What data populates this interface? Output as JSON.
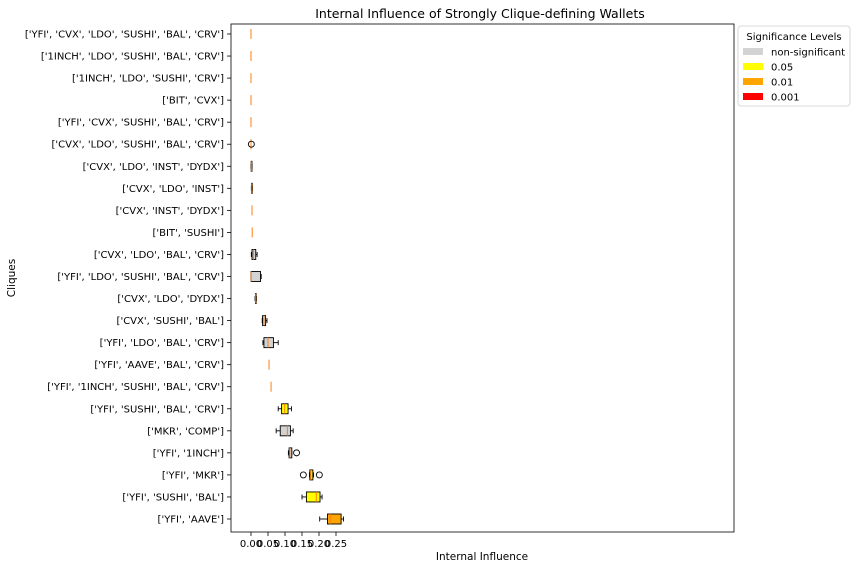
{
  "chart_data": {
    "type": "boxplot",
    "orientation": "horizontal",
    "title": "Internal Influence of Strongly Clique-defining Wallets",
    "xlabel": "Internal Influence",
    "ylabel": "Cliques",
    "xlim": [
      -0.015,
      0.285
    ],
    "xticks": [
      0.0,
      0.05,
      0.1,
      0.15,
      0.2,
      0.25
    ],
    "xtick_labels": [
      "0.00",
      "0.05",
      "0.10",
      "0.15",
      "0.20",
      "0.25"
    ],
    "legend": {
      "title": "Significance Levels",
      "placement": "outside-top-right",
      "items": [
        {
          "label": "non-significant",
          "color": "#d3d3d3"
        },
        {
          "label": "0.05",
          "color": "#ffff00"
        },
        {
          "label": "0.01",
          "color": "#ffa500"
        },
        {
          "label": "0.001",
          "color": "#ff0000"
        }
      ]
    },
    "median_color": "#ff7f0e",
    "boxes": [
      {
        "label": "['YFI', 'CVX', 'LDO', 'SUSHI', 'BAL', 'CRV']",
        "level": "non-significant",
        "whislo": 0.0,
        "q1": 0.0,
        "med": 0.0,
        "q3": 0.0,
        "whishi": 0.0,
        "fliers": []
      },
      {
        "label": "['1INCH', 'LDO', 'SUSHI', 'BAL', 'CRV']",
        "level": "non-significant",
        "whislo": 0.0,
        "q1": 0.0,
        "med": 0.0,
        "q3": 0.0,
        "whishi": 0.0,
        "fliers": []
      },
      {
        "label": "['1INCH', 'LDO', 'SUSHI', 'CRV']",
        "level": "non-significant",
        "whislo": 0.0,
        "q1": 0.0,
        "med": 0.0,
        "q3": 0.0,
        "whishi": 0.0,
        "fliers": []
      },
      {
        "label": "['BIT', 'CVX']",
        "level": "non-significant",
        "whislo": 0.0,
        "q1": 0.0,
        "med": 0.0,
        "q3": 0.0,
        "whishi": 0.0,
        "fliers": []
      },
      {
        "label": "['YFI', 'CVX', 'SUSHI', 'BAL', 'CRV']",
        "level": "non-significant",
        "whislo": 0.0,
        "q1": 0.0,
        "med": 0.0,
        "q3": 0.0,
        "whishi": 0.0,
        "fliers": []
      },
      {
        "label": "['CVX', 'LDO', 'SUSHI', 'BAL', 'CRV']",
        "level": "non-significant",
        "whislo": 0.0,
        "q1": 0.0,
        "med": 0.0,
        "q3": 0.0,
        "whishi": 0.0,
        "fliers": [
          0.001
        ]
      },
      {
        "label": "['CVX', 'LDO', 'INST', 'DYDX']",
        "level": "non-significant",
        "whislo": 0.0,
        "q1": 0.0005,
        "med": 0.001,
        "q3": 0.0015,
        "whishi": 0.003,
        "fliers": []
      },
      {
        "label": "['CVX', 'LDO', 'INST']",
        "level": "non-significant",
        "whislo": 0.001,
        "q1": 0.0015,
        "med": 0.0025,
        "q3": 0.0035,
        "whishi": 0.004,
        "fliers": []
      },
      {
        "label": "['CVX', 'INST', 'DYDX']",
        "level": "non-significant",
        "whislo": 0.003,
        "q1": 0.003,
        "med": 0.003,
        "q3": 0.003,
        "whishi": 0.003,
        "fliers": []
      },
      {
        "label": "['BIT', 'SUSHI']",
        "level": "non-significant",
        "whislo": 0.0035,
        "q1": 0.0035,
        "med": 0.0035,
        "q3": 0.0035,
        "whishi": 0.0035,
        "fliers": []
      },
      {
        "label": "['CVX', 'LDO', 'BAL', 'CRV']",
        "level": "non-significant",
        "whislo": 0.001,
        "q1": 0.003,
        "med": 0.007,
        "q3": 0.014,
        "whishi": 0.018,
        "fliers": []
      },
      {
        "label": "['YFI', 'LDO', 'SUSHI', 'BAL', 'CRV']",
        "level": "non-significant",
        "whislo": 0.0,
        "q1": 0.0,
        "med": 0.0005,
        "q3": 0.028,
        "whishi": 0.03,
        "fliers": []
      },
      {
        "label": "['CVX', 'LDO', 'DYDX']",
        "level": "non-significant",
        "whislo": 0.012,
        "q1": 0.013,
        "med": 0.014,
        "q3": 0.015,
        "whishi": 0.016,
        "fliers": []
      },
      {
        "label": "['CVX', 'SUSHI', 'BAL']",
        "level": "non-significant",
        "whislo": 0.033,
        "q1": 0.034,
        "med": 0.038,
        "q3": 0.043,
        "whishi": 0.047,
        "fliers": []
      },
      {
        "label": "['YFI', 'LDO', 'BAL', 'CRV']",
        "level": "non-significant",
        "whislo": 0.035,
        "q1": 0.038,
        "med": 0.05,
        "q3": 0.066,
        "whishi": 0.08,
        "fliers": []
      },
      {
        "label": "['YFI', 'AAVE', 'BAL', 'CRV']",
        "level": "non-significant",
        "whislo": 0.053,
        "q1": 0.053,
        "med": 0.053,
        "q3": 0.053,
        "whishi": 0.053,
        "fliers": []
      },
      {
        "label": "['YFI', '1INCH', 'SUSHI', 'BAL', 'CRV']",
        "level": "non-significant",
        "whislo": 0.059,
        "q1": 0.059,
        "med": 0.059,
        "q3": 0.059,
        "whishi": 0.059,
        "fliers": []
      },
      {
        "label": "['YFI', 'SUSHI', 'BAL', 'CRV']",
        "level": "0.05",
        "whislo": 0.08,
        "q1": 0.09,
        "med": 0.099,
        "q3": 0.109,
        "whishi": 0.119,
        "fliers": []
      },
      {
        "label": "['MKR', 'COMP']",
        "level": "non-significant",
        "whislo": 0.074,
        "q1": 0.086,
        "med": 0.107,
        "q3": 0.116,
        "whishi": 0.124,
        "fliers": []
      },
      {
        "label": "['YFI', '1INCH']",
        "level": "non-significant",
        "whislo": 0.11,
        "q1": 0.112,
        "med": 0.114,
        "q3": 0.12,
        "whishi": 0.12,
        "fliers": [
          0.134
        ]
      },
      {
        "label": "['YFI', 'MKR']",
        "level": "0.05",
        "whislo": 0.172,
        "q1": 0.173,
        "med": 0.176,
        "q3": 0.182,
        "whishi": 0.184,
        "fliers": [
          0.154,
          0.201
        ]
      },
      {
        "label": "['YFI', 'SUSHI', 'BAL']",
        "level": "0.05",
        "whislo": 0.15,
        "q1": 0.163,
        "med": 0.192,
        "q3": 0.203,
        "whishi": 0.209,
        "fliers": []
      },
      {
        "label": "['YFI', 'AAVE']",
        "level": "0.01",
        "whislo": 0.202,
        "q1": 0.225,
        "med": 0.233,
        "q3": 0.265,
        "whishi": 0.272,
        "fliers": []
      }
    ]
  }
}
